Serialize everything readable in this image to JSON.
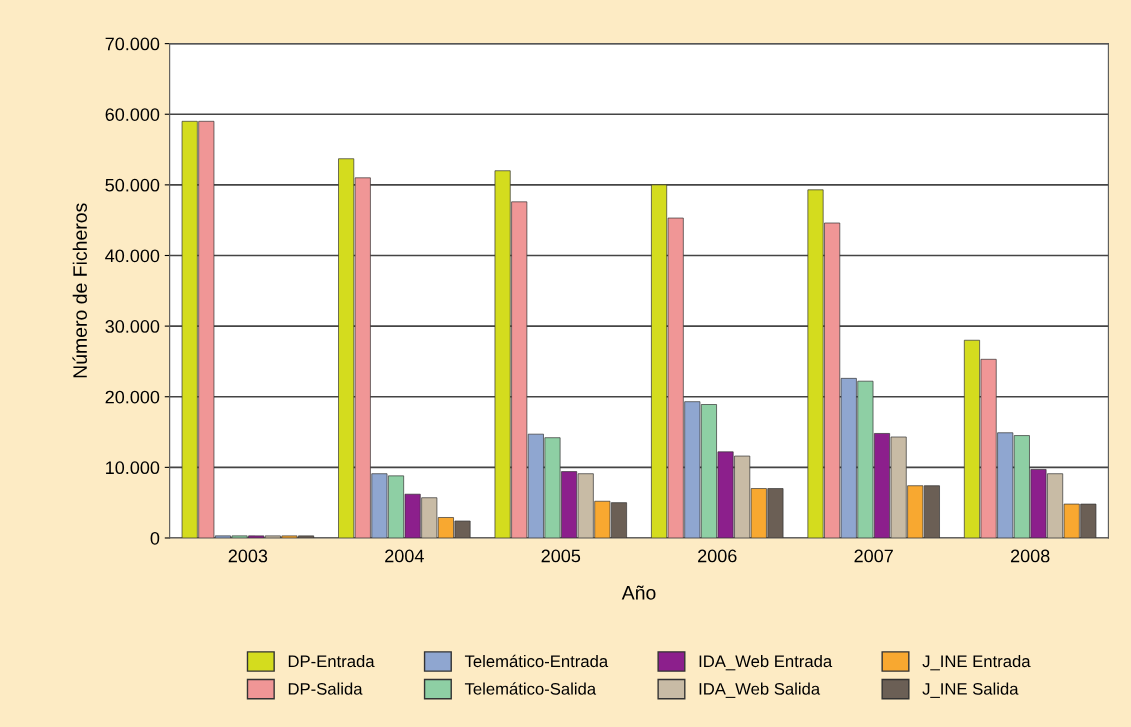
{
  "chart_data": {
    "type": "bar",
    "xlabel": "Año",
    "ylabel": "Número de Ficheros",
    "categories": [
      "2003",
      "2004",
      "2005",
      "2006",
      "2007",
      "2008"
    ],
    "series": [
      {
        "name": "DP-Entrada",
        "color": "#d4dc1e",
        "values": [
          59000,
          53700,
          52000,
          50000,
          49300,
          28000
        ]
      },
      {
        "name": "DP-Salida",
        "color": "#f09696",
        "values": [
          59000,
          51000,
          47600,
          45300,
          44600,
          25300
        ]
      },
      {
        "name": "Telemático-Entrada",
        "color": "#8fa6d0",
        "values": [
          300,
          9100,
          14700,
          19300,
          22600,
          14900
        ]
      },
      {
        "name": "Telemático-Salida",
        "color": "#8ecfa4",
        "values": [
          300,
          8800,
          14200,
          18900,
          22200,
          14500
        ]
      },
      {
        "name": "IDA_Web Entrada",
        "color": "#8c1f8c",
        "values": [
          300,
          6200,
          9400,
          12200,
          14800,
          9700
        ]
      },
      {
        "name": "IDA_Web Salida",
        "color": "#c8bba5",
        "values": [
          300,
          5700,
          9100,
          11600,
          14300,
          9100
        ]
      },
      {
        "name": "J_INE Entrada",
        "color": "#f8a830",
        "values": [
          300,
          2900,
          5200,
          7000,
          7400,
          4800
        ]
      },
      {
        "name": "J_INE Salida",
        "color": "#6b5f55",
        "values": [
          300,
          2400,
          5000,
          7000,
          7400,
          4800
        ]
      }
    ],
    "ylim": [
      0,
      70000
    ],
    "yticks": [
      {
        "value": 0,
        "label": "0"
      },
      {
        "value": 10000,
        "label": "10.000"
      },
      {
        "value": 20000,
        "label": "20.000"
      },
      {
        "value": 30000,
        "label": "30.000"
      },
      {
        "value": 40000,
        "label": "40.000"
      },
      {
        "value": 50000,
        "label": "50.000"
      },
      {
        "value": 60000,
        "label": "60.000"
      },
      {
        "value": 70000,
        "label": "70.000"
      }
    ],
    "grid": "y",
    "legend": "bottom"
  }
}
